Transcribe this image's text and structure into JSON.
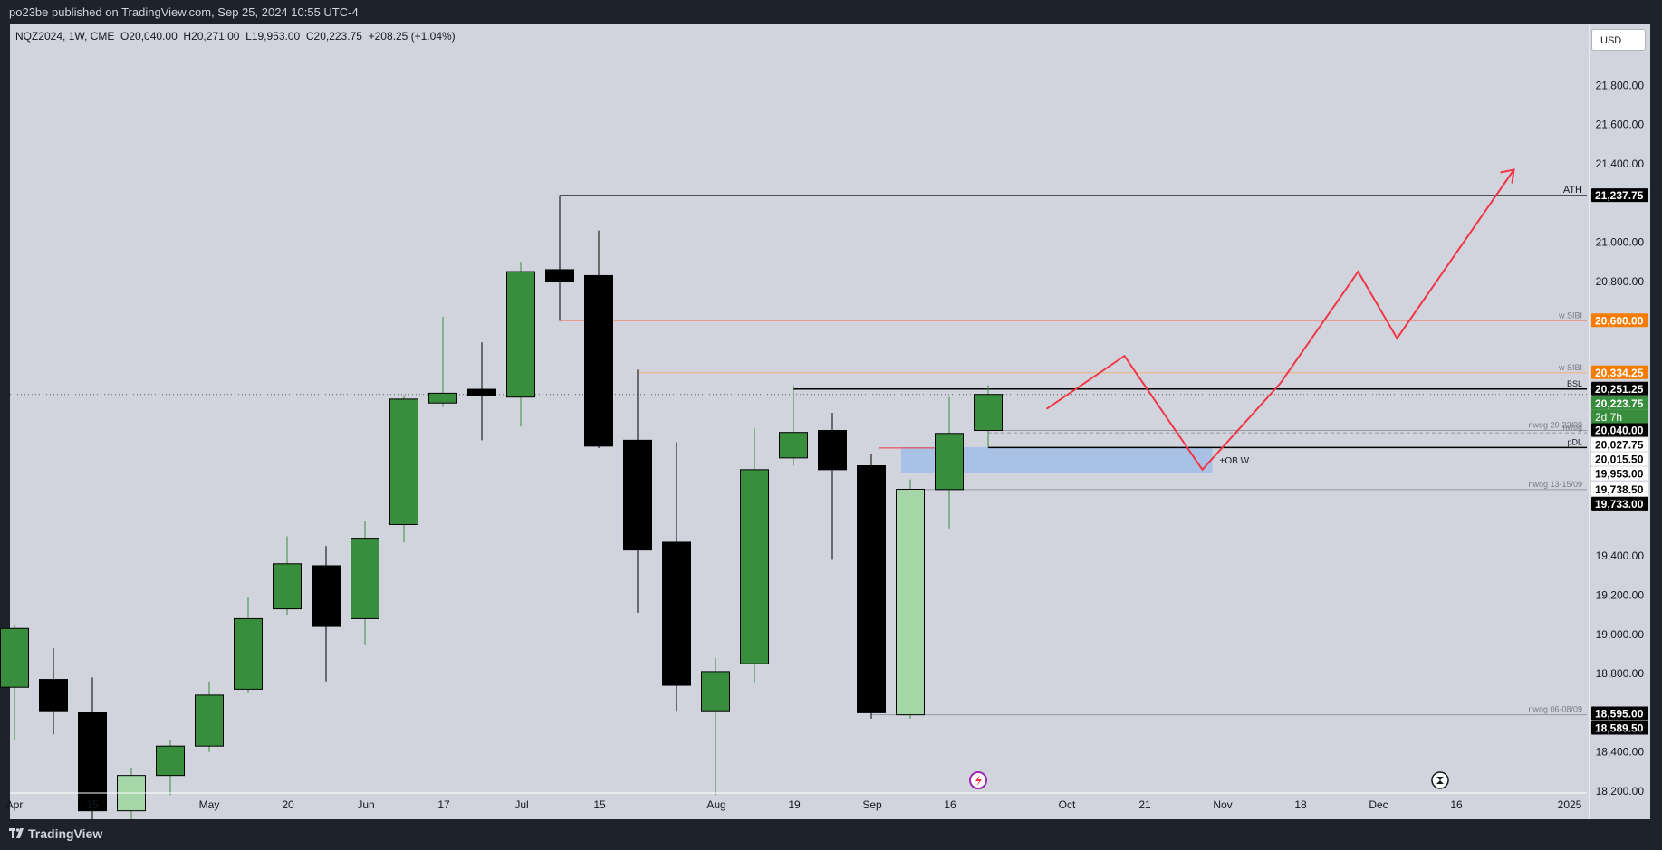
{
  "header": {
    "published": "po23be published on TradingView.com, Sep 25, 2024 10:55 UTC-4",
    "ohlc": "NQZ2024, 1W, CME  O20,040.00  H20,271.00  L19,953.00  C20,223.75  +208.25 (+1.04%)",
    "currency": "USD"
  },
  "footer": {
    "brand": "TradingView"
  },
  "colors": {
    "bull": "#388e3c",
    "bear": "#000000",
    "highlight_bull": "#a5d6a7",
    "forecast": "#f23645",
    "level_orange": "#f57c00",
    "ob_zone": "#90b4ec",
    "background": "#d1d4dc"
  },
  "chart_data": {
    "type": "candlestick",
    "symbol": "NQZ2024",
    "interval": "1W",
    "exchange": "CME",
    "ylim": [
      18175,
      22000
    ],
    "y_ticks": [
      "21,800.00",
      "21,600.00",
      "21,400.00",
      "21,000.00",
      "20,800.00",
      "19,400.00",
      "19,200.00",
      "19,000.00",
      "18,800.00",
      "18,400.00",
      "18,200.00"
    ],
    "x_ticks": [
      "Apr",
      "15",
      "May",
      "20",
      "Jun",
      "17",
      "Jul",
      "15",
      "Aug",
      "19",
      "Sep",
      "16",
      "Oct",
      "21",
      "Nov",
      "18",
      "Dec",
      "16",
      "2025"
    ],
    "candles": [
      {
        "o": 18730,
        "h": 19050,
        "l": 18460,
        "c": 19030
      },
      {
        "o": 18770,
        "h": 18930,
        "l": 18490,
        "c": 18610
      },
      {
        "o": 18600,
        "h": 18780,
        "l": 18050,
        "c": 18100
      },
      {
        "o": 18100,
        "h": 18320,
        "l": 18000,
        "c": 18280
      },
      {
        "o": 18280,
        "h": 18460,
        "l": 18180,
        "c": 18430
      },
      {
        "o": 18430,
        "h": 18760,
        "l": 18400,
        "c": 18690
      },
      {
        "o": 18720,
        "h": 19190,
        "l": 18700,
        "c": 19080
      },
      {
        "o": 19130,
        "h": 19500,
        "l": 19100,
        "c": 19360
      },
      {
        "o": 19350,
        "h": 19450,
        "l": 18760,
        "c": 19040
      },
      {
        "o": 19080,
        "h": 19580,
        "l": 18950,
        "c": 19490
      },
      {
        "o": 19560,
        "h": 20220,
        "l": 19470,
        "c": 20200
      },
      {
        "o": 20180,
        "h": 20620,
        "l": 20160,
        "c": 20230
      },
      {
        "o": 20250,
        "h": 20490,
        "l": 19990,
        "c": 20220
      },
      {
        "o": 20210,
        "h": 20900,
        "l": 20060,
        "c": 20850
      },
      {
        "o": 20860,
        "h": 21240,
        "l": 20600,
        "c": 20800
      },
      {
        "o": 20830,
        "h": 21060,
        "l": 19950,
        "c": 19960
      },
      {
        "o": 19990,
        "h": 20350,
        "l": 19110,
        "c": 19430
      },
      {
        "o": 19470,
        "h": 19980,
        "l": 18610,
        "c": 18740
      },
      {
        "o": 18610,
        "h": 18880,
        "l": 18180,
        "c": 18810
      },
      {
        "o": 18850,
        "h": 20050,
        "l": 18750,
        "c": 19840
      },
      {
        "o": 19900,
        "h": 20270,
        "l": 19860,
        "c": 20030
      },
      {
        "o": 20040,
        "h": 20130,
        "l": 19380,
        "c": 19840
      },
      {
        "o": 19860,
        "h": 19920,
        "l": 18570,
        "c": 18600
      },
      {
        "o": 18589.5,
        "h": 19790,
        "l": 18570,
        "c": 19740
      },
      {
        "o": 19738.5,
        "h": 20210,
        "l": 19540,
        "c": 20025
      },
      {
        "o": 20040,
        "h": 20271,
        "l": 19953,
        "c": 20223.75
      }
    ],
    "highlighted_candle_index": 3,
    "highlighted_candle_index_2": 23,
    "levels": [
      {
        "label": "ATH",
        "price": 21237.75,
        "from_candle": 14,
        "style": "solid",
        "color": "#000000"
      },
      {
        "label": "w SIBI",
        "price": 20600.0,
        "from_candle": 14,
        "style": "solid",
        "color": "#e9897a"
      },
      {
        "label": "w SIBI",
        "price": 20334.25,
        "from_candle": 16,
        "style": "solid",
        "color": "#f5b07a"
      },
      {
        "label": "BSL",
        "price": 20251.25,
        "from_candle": 20,
        "style": "solid",
        "color": "#000000"
      },
      {
        "label": "nwog 20-22/09",
        "price": 20040.0,
        "from_candle": 25,
        "style": "solid",
        "color": "#9598a1"
      },
      {
        "label": "nwog",
        "price": 20027.75,
        "from_candle": 25,
        "style": "dashed",
        "color": "#9598a1"
      },
      {
        "label": "pDL",
        "price": 19953.0,
        "from_candle": 25,
        "style": "solid",
        "color": "#000000"
      },
      {
        "label": "nwog 13-15/09",
        "price": 19738.5,
        "from_candle": 23,
        "style": "solid",
        "color": "#9598a1"
      },
      {
        "label": "nwog 06-08/09",
        "price": 18589.5,
        "from_candle": 22,
        "style": "solid",
        "color": "#9598a1"
      }
    ],
    "order_block": {
      "label": "+OB W",
      "top": 19955,
      "bottom": 19825,
      "from_candle": 23,
      "to_week": 30.5
    },
    "forecast_path": [
      [
        26.5,
        20150
      ],
      [
        28.5,
        20420
      ],
      [
        30.5,
        19840
      ],
      [
        32.5,
        20280
      ],
      [
        34.5,
        20850
      ],
      [
        35.5,
        20510
      ],
      [
        38.5,
        21370
      ]
    ],
    "price_labels": [
      {
        "text": "21,237.75",
        "bg": "#000000",
        "fg": "#ffffff",
        "price": 21237.75
      },
      {
        "text": "20,600.00",
        "bg": "#f57c00",
        "fg": "#ffffff",
        "price": 20600.0
      },
      {
        "text": "20,334.25",
        "bg": "#f57c00",
        "fg": "#ffffff",
        "price": 20334.25
      },
      {
        "text": "20,251.25",
        "bg": "#000000",
        "fg": "#ffffff",
        "price": 20251.25
      },
      {
        "text": "20,223.75",
        "bg": "#388e3c",
        "fg": "#ffffff",
        "price": 20223.75
      },
      {
        "text": "20,040.00",
        "bg": "#000000",
        "fg": "#ffffff",
        "price": 20040.0
      },
      {
        "text": "20,027.75",
        "bg": "#ffffff",
        "fg": "#000000",
        "price": 20027.75
      },
      {
        "text": "20,015.50",
        "bg": "#ffffff",
        "fg": "#000000",
        "price": 20015.5
      },
      {
        "text": "19,953.00",
        "bg": "#ffffff",
        "fg": "#000000",
        "price": 19953.0
      },
      {
        "text": "19,738.50",
        "bg": "#ffffff",
        "fg": "#000000",
        "price": 19738.5
      },
      {
        "text": "19,733.00",
        "bg": "#000000",
        "fg": "#ffffff",
        "price": 19733.0
      },
      {
        "text": "18,595.00",
        "bg": "#000000",
        "fg": "#ffffff",
        "price": 18595.0
      },
      {
        "text": "18,589.50",
        "bg": "#000000",
        "fg": "#ffffff",
        "price": 18589.5
      }
    ],
    "countdown": "2d 7h",
    "last_price": 20223.75
  }
}
